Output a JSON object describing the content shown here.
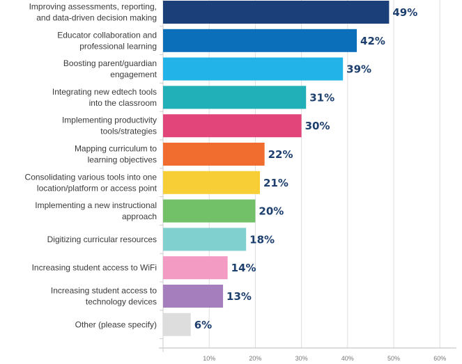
{
  "chart_data": {
    "type": "bar",
    "orientation": "horizontal",
    "categories": [
      [
        "Improving assessments, reporting,",
        "and data-driven decision making"
      ],
      [
        "Educator collaboration and",
        "professional learning"
      ],
      [
        "Boosting parent/guardian",
        "engagement"
      ],
      [
        "Integrating new edtech tools",
        "into the classroom"
      ],
      [
        "Implementing productivity",
        "tools/strategies"
      ],
      [
        "Mapping curriculum to",
        "learning objectives"
      ],
      [
        "Consolidating various tools into one",
        "location/platform or access point"
      ],
      [
        "Implementing a new instructional",
        "approach"
      ],
      [
        "Digitizing curricular resources"
      ],
      [
        "Increasing student access to WiFi"
      ],
      [
        "Increasing student access to",
        "technology devices"
      ],
      [
        "Other (please specify)"
      ]
    ],
    "values": [
      49,
      42,
      39,
      31,
      30,
      22,
      21,
      20,
      18,
      14,
      13,
      6
    ],
    "data_labels": [
      "49%",
      "42%",
      "39%",
      "31%",
      "30%",
      "22%",
      "21%",
      "20%",
      "18%",
      "14%",
      "13%",
      "6%"
    ],
    "colors": [
      "#1b3f79",
      "#0c6fb9",
      "#22b4e8",
      "#21b0b7",
      "#e2457a",
      "#f06c2f",
      "#f7ce36",
      "#72c168",
      "#80d0cf",
      "#f39bc2",
      "#a57fbd",
      "#dddddd"
    ],
    "xlim": [
      0,
      62
    ],
    "xticks": [
      10,
      20,
      30,
      40,
      50,
      60
    ],
    "xtick_labels": [
      "10%",
      "20%",
      "30%",
      "40%",
      "50%",
      "60%"
    ],
    "grid": true,
    "title": "",
    "xlabel": "",
    "ylabel": ""
  }
}
